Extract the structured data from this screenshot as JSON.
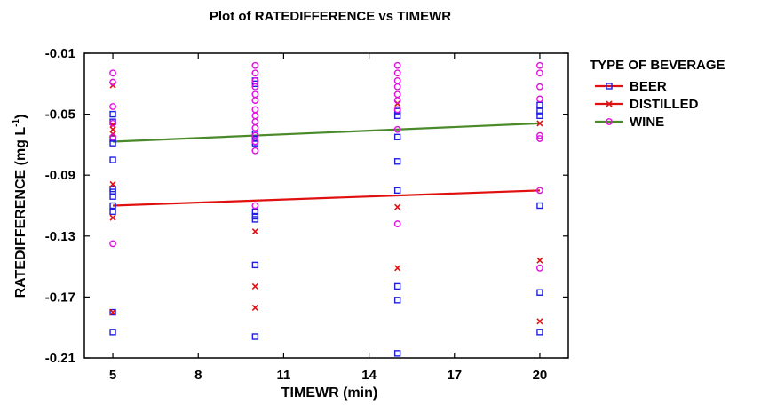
{
  "chart_data": {
    "type": "scatter",
    "title": "Plot of RATEDIFFERENCE vs TIMEWR",
    "xlabel": "TIMEWR (min)",
    "ylabel_main": "RATEDIFFERENCE (mg L",
    "ylabel_sup": "-1",
    "ylabel_tail": ")",
    "xlim": [
      4,
      21
    ],
    "ylim": [
      -0.21,
      -0.01
    ],
    "xticks": [
      5,
      8,
      11,
      14,
      17,
      20
    ],
    "xtick_labels": [
      "5",
      "8",
      "11",
      "14",
      "17",
      "20"
    ],
    "yticks": [
      -0.01,
      -0.05,
      -0.09,
      -0.13,
      -0.17,
      -0.21
    ],
    "ytick_labels": [
      "-0.01",
      "-0.05",
      "-0.09",
      "-0.13",
      "-0.17",
      "-0.21"
    ],
    "legend": {
      "title": "TYPE OF BEVERAGE",
      "position": "right"
    },
    "series": [
      {
        "name": "BEER",
        "marker": "square",
        "color": "#1f1fe0",
        "points": [
          [
            5,
            -0.05
          ],
          [
            5,
            -0.055
          ],
          [
            5,
            -0.066
          ],
          [
            5,
            -0.069
          ],
          [
            5,
            -0.08
          ],
          [
            5,
            -0.099
          ],
          [
            5,
            -0.101
          ],
          [
            5,
            -0.104
          ],
          [
            5,
            -0.11
          ],
          [
            5,
            -0.114
          ],
          [
            5,
            -0.18
          ],
          [
            5,
            -0.193
          ],
          [
            10,
            -0.028
          ],
          [
            10,
            -0.03
          ],
          [
            10,
            -0.063
          ],
          [
            10,
            -0.066
          ],
          [
            10,
            -0.069
          ],
          [
            10,
            -0.114
          ],
          [
            10,
            -0.117
          ],
          [
            10,
            -0.119
          ],
          [
            10,
            -0.149
          ],
          [
            10,
            -0.196
          ],
          [
            15,
            -0.048
          ],
          [
            15,
            -0.051
          ],
          [
            15,
            -0.065
          ],
          [
            15,
            -0.081
          ],
          [
            15,
            -0.1
          ],
          [
            15,
            -0.163
          ],
          [
            15,
            -0.172
          ],
          [
            15,
            -0.207
          ],
          [
            20,
            -0.044
          ],
          [
            20,
            -0.048
          ],
          [
            20,
            -0.051
          ],
          [
            20,
            -0.11
          ],
          [
            20,
            -0.167
          ],
          [
            20,
            -0.193
          ]
        ],
        "fit": [
          [
            5,
            -0.11
          ],
          [
            20,
            -0.1
          ]
        ],
        "fit_color": "#e01010"
      },
      {
        "name": "DISTILLED",
        "marker": "x",
        "color": "#e01010",
        "points": [
          [
            5,
            -0.031
          ],
          [
            5,
            -0.057
          ],
          [
            5,
            -0.06
          ],
          [
            5,
            -0.063
          ],
          [
            5,
            -0.096
          ],
          [
            5,
            -0.118
          ],
          [
            5,
            -0.18
          ],
          [
            10,
            -0.127
          ],
          [
            10,
            -0.163
          ],
          [
            10,
            -0.177
          ],
          [
            15,
            -0.043
          ],
          [
            15,
            -0.111
          ],
          [
            15,
            -0.151
          ],
          [
            20,
            -0.056
          ],
          [
            20,
            -0.146
          ],
          [
            20,
            -0.186
          ]
        ],
        "fit": null
      },
      {
        "name": "WINE",
        "marker": "circle",
        "color": "#e010e0",
        "points": [
          [
            5,
            -0.023
          ],
          [
            5,
            -0.029
          ],
          [
            5,
            -0.045
          ],
          [
            5,
            -0.056
          ],
          [
            5,
            -0.065
          ],
          [
            5,
            -0.135
          ],
          [
            10,
            -0.018
          ],
          [
            10,
            -0.023
          ],
          [
            10,
            -0.028
          ],
          [
            10,
            -0.032
          ],
          [
            10,
            -0.037
          ],
          [
            10,
            -0.041
          ],
          [
            10,
            -0.047
          ],
          [
            10,
            -0.051
          ],
          [
            10,
            -0.055
          ],
          [
            10,
            -0.059
          ],
          [
            10,
            -0.064
          ],
          [
            10,
            -0.068
          ],
          [
            10,
            -0.074
          ],
          [
            10,
            -0.11
          ],
          [
            15,
            -0.018
          ],
          [
            15,
            -0.023
          ],
          [
            15,
            -0.028
          ],
          [
            15,
            -0.032
          ],
          [
            15,
            -0.037
          ],
          [
            15,
            -0.041
          ],
          [
            15,
            -0.047
          ],
          [
            15,
            -0.06
          ],
          [
            15,
            -0.122
          ],
          [
            20,
            -0.018
          ],
          [
            20,
            -0.023
          ],
          [
            20,
            -0.032
          ],
          [
            20,
            -0.04
          ],
          [
            20,
            -0.064
          ],
          [
            20,
            -0.066
          ],
          [
            20,
            -0.1
          ],
          [
            20,
            -0.151
          ]
        ],
        "fit": [
          [
            5,
            -0.068
          ],
          [
            20,
            -0.056
          ]
        ],
        "fit_color": "#4a8a2a"
      }
    ]
  }
}
